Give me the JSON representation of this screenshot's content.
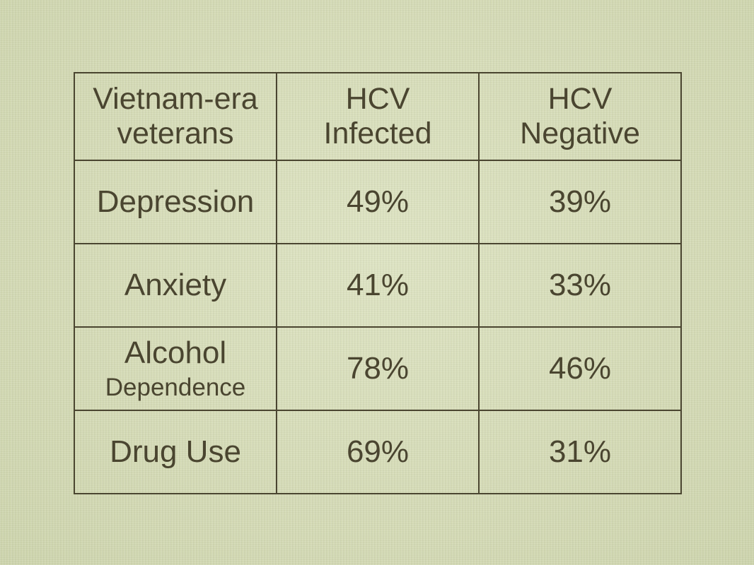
{
  "table": {
    "header": {
      "col1": [
        "Vietnam-era",
        "veterans"
      ],
      "col2": [
        "HCV",
        "Infected"
      ],
      "col3": [
        "HCV",
        "Negative"
      ]
    },
    "rows": [
      {
        "label": "Depression",
        "infected": "49%",
        "negative": "39%"
      },
      {
        "label_line1": "Anxiety",
        "infected": "41%",
        "negative": "33%"
      },
      {
        "label_line1": "Alcohol",
        "label_line2": "Dependence",
        "infected": "78%",
        "negative": "46%"
      },
      {
        "label": "Drug Use",
        "infected": "69%",
        "negative": "31%"
      }
    ]
  },
  "colors": {
    "background": "#d8debb",
    "text": "#4a4530",
    "border": "#4a4530"
  }
}
